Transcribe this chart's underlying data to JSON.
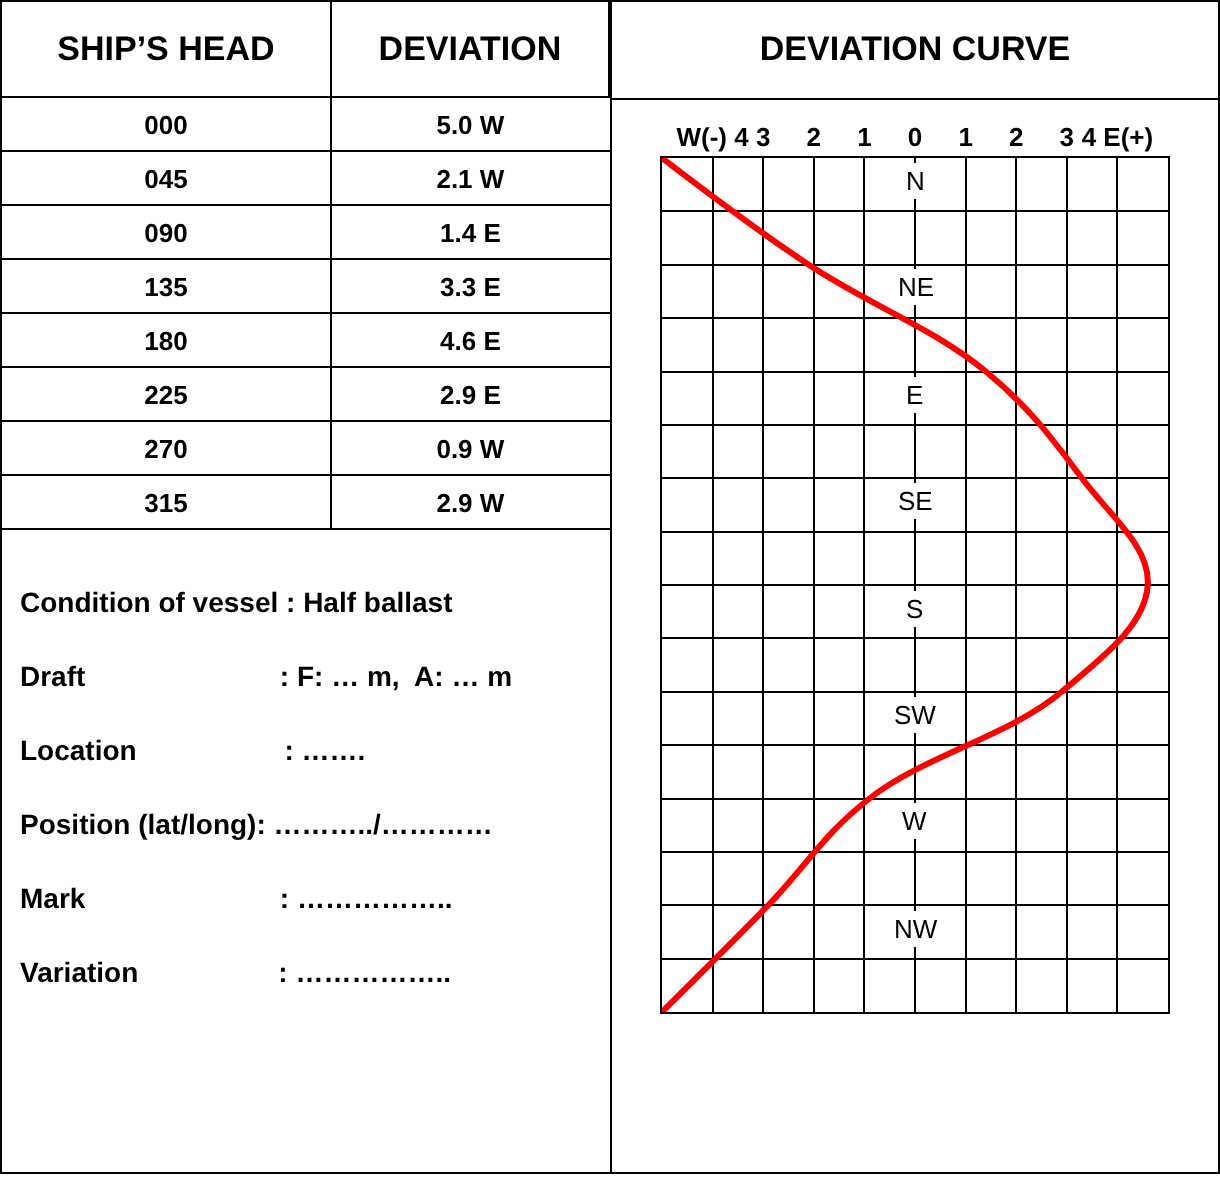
{
  "chart_data": {
    "type": "line",
    "title": "DEVIATION CURVE",
    "orientation": "horizontal",
    "categories": [
      "N",
      "NE",
      "E",
      "SE",
      "S",
      "SW",
      "W",
      "NW",
      null
    ],
    "series": [
      {
        "color": "#ff0000",
        "values": [
          -5.0,
          -2.1,
          1.4,
          3.3,
          4.6,
          2.9,
          -0.9,
          -2.9,
          -5.0
        ]
      }
    ],
    "xlim": [
      -5,
      5
    ],
    "xticks": [
      {
        "value": -4,
        "label": "W(-) 4"
      },
      {
        "value": -3,
        "label": "3"
      },
      {
        "value": -2,
        "label": "2"
      },
      {
        "value": -1,
        "label": "1"
      },
      0,
      1,
      2,
      3,
      {
        "value": 4,
        "label": "4 E(+)"
      }
    ],
    "grid": true,
    "annotations": [
      "SHIP’S HEAD",
      "DEVIATION",
      "000",
      "5.0 W",
      "045",
      "2.1 W",
      "090",
      "1.4 E",
      "135",
      "3.3 E",
      "180",
      "4.6 E",
      "225",
      "2.9 E",
      "270",
      "0.9 W",
      "315",
      "2.9 W",
      "Condition of vessel : Half ballast",
      "Draft                         : F: … m,  A: … m",
      "Location                   : …….",
      "Position (lat/long): ………../…………",
      "Mark                         : ……………..",
      "Variation                  : …………….."
    ]
  }
}
